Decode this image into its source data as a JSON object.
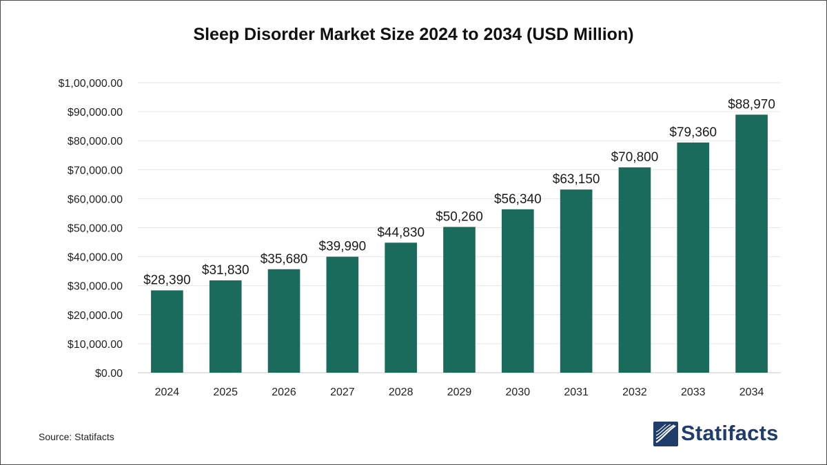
{
  "chart_data": {
    "type": "bar",
    "title": "Sleep Disorder Market Size 2024 to 2034 (USD Million)",
    "categories": [
      "2024",
      "2025",
      "2026",
      "2027",
      "2028",
      "2029",
      "2030",
      "2031",
      "2032",
      "2033",
      "2034"
    ],
    "values": [
      28390,
      31830,
      35680,
      39990,
      44830,
      50260,
      56340,
      63150,
      70800,
      79360,
      88970
    ],
    "data_labels": [
      "$28,390",
      "$31,830",
      "$35,680",
      "$39,990",
      "$44,830",
      "$50,260",
      "$56,340",
      "$63,150",
      "$70,800",
      "$79,360",
      "$88,970"
    ],
    "y_ticks": [
      "$0.00",
      "$10,000.00",
      "$20,000.00",
      "$30,000.00",
      "$40,000.00",
      "$50,000.00",
      "$60,000.00",
      "$70,000.00",
      "$80,000.00",
      "$90,000.00",
      "$1,00,000.00"
    ],
    "ylim": [
      0,
      100000
    ],
    "xlabel": "",
    "ylabel": "",
    "grid": true,
    "legend": "none",
    "bar_color": "#1a6b5c"
  },
  "footer": {
    "source": "Source: Statifacts",
    "logo_text": "Statifacts",
    "logo_color": "#1f3d6b"
  }
}
